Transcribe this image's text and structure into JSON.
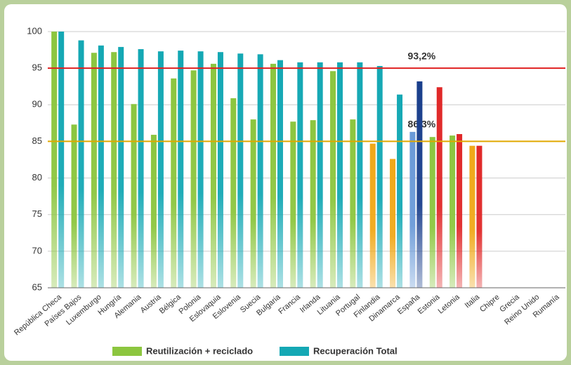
{
  "chart_data": {
    "type": "bar",
    "categories": [
      "República Checa",
      "Países Bajos",
      "Luxemburgo",
      "Hungría",
      "Alemania",
      "Austria",
      "Bélgica",
      "Polonia",
      "Eslovaquia",
      "Eslovenia",
      "Suecia",
      "Bulgaria",
      "Francia",
      "Irlanda",
      "Lituania",
      "Portugal",
      "Finlandia",
      "Dinamarca",
      "España",
      "Estonia",
      "Letonia",
      "Italia",
      "Chipre",
      "Grecia",
      "Reino Unido",
      "Rumanía"
    ],
    "series": [
      {
        "name": "Reutilización + reciclado",
        "color": "#8cc63f",
        "values": [
          100,
          87.3,
          97.1,
          97.2,
          90.1,
          85.9,
          93.6,
          94.7,
          95.6,
          90.9,
          88.0,
          95.6,
          87.7,
          87.9,
          94.6,
          88.0,
          84.7,
          82.6,
          86.3,
          85.6,
          85.8,
          84.4,
          null,
          null,
          null,
          null
        ],
        "colors": [
          "#8cc63f",
          "#8cc63f",
          "#8cc63f",
          "#8cc63f",
          "#8cc63f",
          "#8cc63f",
          "#8cc63f",
          "#8cc63f",
          "#8cc63f",
          "#8cc63f",
          "#8cc63f",
          "#8cc63f",
          "#8cc63f",
          "#8cc63f",
          "#8cc63f",
          "#8cc63f",
          "#f0a818",
          "#f0a818",
          "#6a9ad8",
          "#8cc63f",
          "#8cc63f",
          "#f0a818",
          null,
          null,
          null,
          null
        ],
        "value_labels": [
          null,
          null,
          null,
          null,
          null,
          null,
          null,
          null,
          null,
          null,
          null,
          null,
          null,
          null,
          null,
          null,
          null,
          null,
          "86,3%",
          null,
          null,
          null,
          null,
          null,
          null,
          null
        ]
      },
      {
        "name": "Recuperación Total",
        "color": "#14a8b4",
        "values": [
          100,
          98.8,
          98.1,
          97.9,
          97.6,
          97.3,
          97.4,
          97.3,
          97.2,
          97.0,
          96.9,
          96.1,
          95.8,
          95.8,
          95.8,
          95.8,
          95.3,
          91.4,
          93.2,
          92.4,
          86.0,
          84.4,
          null,
          null,
          null,
          null
        ],
        "colors": [
          "#14a8b4",
          "#14a8b4",
          "#14a8b4",
          "#14a8b4",
          "#14a8b4",
          "#14a8b4",
          "#14a8b4",
          "#14a8b4",
          "#14a8b4",
          "#14a8b4",
          "#14a8b4",
          "#14a8b4",
          "#14a8b4",
          "#14a8b4",
          "#14a8b4",
          "#14a8b4",
          "#14a8b4",
          "#14a8b4",
          "#1a3f8c",
          "#e02828",
          "#e02828",
          "#e02828",
          null,
          null,
          null,
          null
        ],
        "value_labels": [
          null,
          null,
          null,
          null,
          null,
          null,
          null,
          null,
          null,
          null,
          null,
          null,
          null,
          null,
          null,
          null,
          null,
          null,
          "93,2%",
          null,
          null,
          null,
          null,
          null,
          null,
          null
        ]
      }
    ],
    "ylim": [
      65,
      100
    ],
    "yticks": [
      65,
      70,
      75,
      80,
      85,
      90,
      95,
      100
    ],
    "grid": true,
    "reference_lines": [
      {
        "value": 95,
        "color": "#e02020"
      },
      {
        "value": 85,
        "color": "#e0a800"
      }
    ],
    "legend": "bottom"
  }
}
